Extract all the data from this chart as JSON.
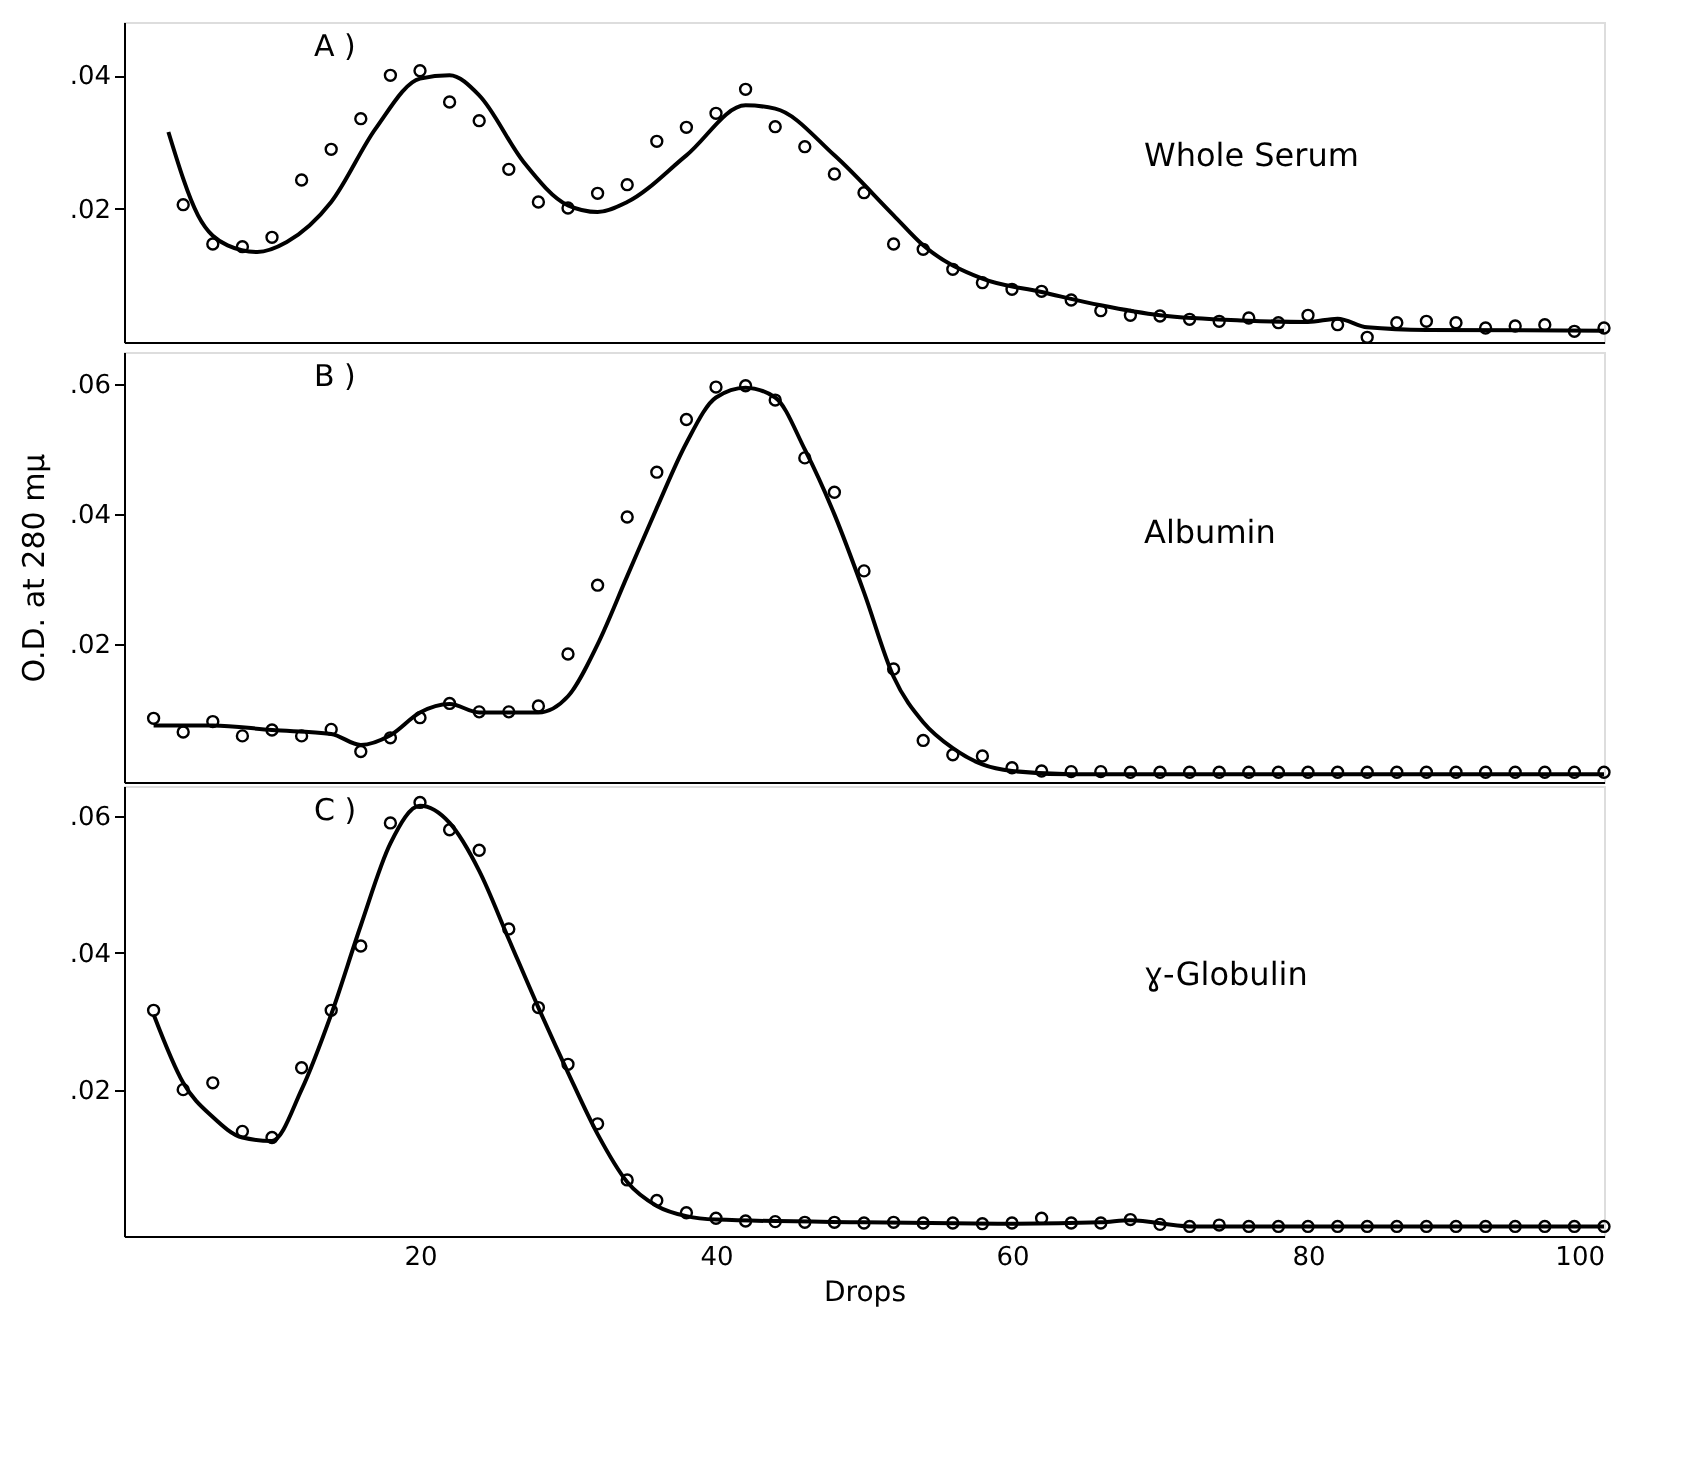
{
  "chart_data": [
    {
      "type": "scatter",
      "xlim": [
        0,
        100
      ],
      "xticks": [
        20,
        40,
        60,
        80,
        100
      ],
      "ylim": [
        0,
        0.048
      ],
      "yticks": [
        {
          "value": 0.02,
          "label": ".02"
        },
        {
          "value": 0.04,
          "label": ".04"
        }
      ],
      "tick_labels": "y",
      "annotations": [
        "A )",
        "Whole Serum"
      ],
      "series": [
        {
          "type": "scatter",
          "marker": "circle",
          "color": "#000000",
          "x": [
            4,
            6,
            8,
            10,
            12,
            14,
            16,
            18,
            20,
            22,
            24,
            26,
            28,
            30,
            32,
            34,
            36,
            38,
            40,
            42,
            44,
            46,
            48,
            50,
            52,
            54,
            56,
            58,
            60,
            62,
            64,
            66,
            68,
            70,
            72,
            74,
            76,
            78,
            80,
            82,
            84,
            86,
            88,
            90,
            92,
            94,
            96,
            98,
            100
          ],
          "values": [
            0.0206,
            0.0147,
            0.0143,
            0.0157,
            0.0243,
            0.0289,
            0.0335,
            0.04,
            0.0407,
            0.036,
            0.0332,
            0.0259,
            0.021,
            0.0201,
            0.0223,
            0.0236,
            0.0301,
            0.0322,
            0.0343,
            0.0379,
            0.0323,
            0.0293,
            0.0252,
            0.0224,
            0.0147,
            0.0139,
            0.0109,
            0.0089,
            0.0079,
            0.0076,
            0.0063,
            0.0047,
            0.004,
            0.0039,
            0.0034,
            0.0031,
            0.0036,
            0.0029,
            0.004,
            0.0026,
            0.0007,
            0.0029,
            0.0031,
            0.0029,
            0.0021,
            0.0024,
            0.0026,
            0.0016,
            0.0021
          ]
        },
        {
          "type": "line",
          "color": "#000000",
          "x": [
            3,
            5,
            7,
            9,
            11,
            14,
            17,
            20,
            22,
            24,
            27,
            30,
            32,
            34,
            38,
            42,
            44,
            48,
            52,
            54,
            58,
            62,
            66,
            70,
            76,
            80,
            82,
            84,
            88,
            100
          ],
          "values": [
            0.0315,
            0.019,
            0.0145,
            0.0135,
            0.015,
            0.021,
            0.032,
            0.0395,
            0.04,
            0.037,
            0.027,
            0.0205,
            0.0195,
            0.021,
            0.028,
            0.0355,
            0.035,
            0.028,
            0.019,
            0.0145,
            0.0095,
            0.0075,
            0.0055,
            0.004,
            0.0032,
            0.003,
            0.0035,
            0.0022,
            0.0018,
            0.0017
          ]
        }
      ]
    },
    {
      "type": "scatter",
      "xlim": [
        0,
        100
      ],
      "xticks": [
        20,
        40,
        60,
        80,
        100
      ],
      "ylim": [
        -0.0012,
        0.065
      ],
      "yticks": [
        {
          "value": 0.02,
          "label": ".02"
        },
        {
          "value": 0.04,
          "label": ".04"
        },
        {
          "value": 0.06,
          "label": ".06"
        }
      ],
      "tick_labels": "y",
      "ylabel": "O.D. at 280 mμ",
      "annotations": [
        "B )",
        "Albumin"
      ],
      "series": [
        {
          "type": "scatter",
          "color": "#000000",
          "x": [
            2,
            4,
            6,
            8,
            10,
            12,
            14,
            16,
            18,
            20,
            22,
            24,
            26,
            28,
            30,
            32,
            34,
            36,
            38,
            40,
            42,
            44,
            46,
            48,
            50,
            52,
            54,
            56,
            58,
            60,
            62,
            64,
            66,
            68,
            70,
            72,
            74,
            76,
            78,
            80,
            82,
            84,
            86,
            88,
            90,
            92,
            94,
            96,
            98,
            100
          ],
          "marker": "circle",
          "values": [
            0.0086,
            0.0065,
            0.0081,
            0.0059,
            0.0068,
            0.0059,
            0.0069,
            0.0035,
            0.0056,
            0.0087,
            0.0109,
            0.0096,
            0.0096,
            0.0105,
            0.0185,
            0.0291,
            0.0396,
            0.0465,
            0.0546,
            0.0596,
            0.0598,
            0.0576,
            0.0487,
            0.0434,
            0.0313,
            0.0162,
            0.0052,
            0.003,
            0.0028,
            0.001,
            0.0005,
            0.0004,
            0.0004,
            0.0003,
            0.0003,
            0.0003,
            0.0003,
            0.0003,
            0.0003,
            0.0003,
            0.0003,
            0.0003,
            0.0003,
            0.0003,
            0.0003,
            0.0003,
            0.0003,
            0.0003,
            0.0003,
            0.0003
          ]
        },
        {
          "type": "line",
          "color": "#000000",
          "x": [
            2,
            6,
            10,
            14,
            16,
            18,
            20,
            22,
            24,
            28,
            30,
            32,
            34,
            36,
            38,
            40,
            42,
            44,
            46,
            48,
            50,
            52,
            54,
            56,
            58,
            60,
            64,
            100
          ],
          "values": [
            0.0075,
            0.0075,
            0.0068,
            0.0062,
            0.0045,
            0.006,
            0.0095,
            0.0108,
            0.0095,
            0.0095,
            0.012,
            0.02,
            0.0305,
            0.041,
            0.051,
            0.058,
            0.0595,
            0.058,
            0.05,
            0.04,
            0.028,
            0.015,
            0.008,
            0.004,
            0.0015,
            0.0005,
            0.0,
            0.0
          ]
        }
      ]
    },
    {
      "type": "scatter",
      "xlim": [
        0,
        100
      ],
      "xticks": [
        20,
        40,
        60,
        80,
        100
      ],
      "ylim": [
        -0.0014,
        0.0644
      ],
      "yticks": [
        {
          "value": 0.02,
          "label": ".02"
        },
        {
          "value": 0.04,
          "label": ".04"
        },
        {
          "value": 0.06,
          "label": ".06"
        }
      ],
      "xlabel": "Drops",
      "annotations": [
        "C )",
        "ɣ-Globulin"
      ],
      "series": [
        {
          "type": "scatter",
          "color": "#000000",
          "x": [
            2,
            4,
            6,
            8,
            10,
            12,
            14,
            16,
            18,
            20,
            22,
            24,
            26,
            28,
            30,
            32,
            34,
            36,
            38,
            40,
            42,
            44,
            46,
            48,
            50,
            52,
            54,
            56,
            58,
            60,
            62,
            64,
            66,
            68,
            70,
            72,
            74,
            76,
            78,
            80,
            82,
            84,
            86,
            88,
            90,
            92,
            94,
            96,
            98,
            100
          ],
          "marker": "circle",
          "values": [
            0.0316,
            0.02,
            0.021,
            0.0139,
            0.013,
            0.0232,
            0.0316,
            0.041,
            0.059,
            0.062,
            0.058,
            0.055,
            0.0435,
            0.032,
            0.0237,
            0.015,
            0.0068,
            0.0038,
            0.002,
            0.0012,
            0.0008,
            0.0007,
            0.0006,
            0.0006,
            0.0005,
            0.0006,
            0.0005,
            0.0005,
            0.0004,
            0.0005,
            0.0012,
            0.0005,
            0.0005,
            0.001,
            0.0003,
            0.0,
            0.0002,
            0.0,
            0.0,
            0.0,
            0.0,
            0.0,
            0.0,
            0.0,
            0.0,
            0.0,
            0.0,
            0.0,
            0.0,
            0.0
          ]
        },
        {
          "type": "line",
          "color": "#000000",
          "x": [
            2,
            4,
            6,
            8,
            10,
            12,
            14,
            16,
            18,
            20,
            22,
            24,
            26,
            28,
            30,
            32,
            34,
            36,
            38,
            40,
            50,
            60,
            66,
            68,
            72,
            80,
            100
          ],
          "values": [
            0.031,
            0.021,
            0.016,
            0.013,
            0.0125,
            0.02,
            0.031,
            0.044,
            0.056,
            0.0615,
            0.059,
            0.052,
            0.042,
            0.032,
            0.0225,
            0.0135,
            0.0065,
            0.003,
            0.0015,
            0.001,
            0.0006,
            0.0004,
            0.0006,
            0.0009,
            0.0,
            0.0,
            0.0
          ]
        }
      ]
    }
  ]
}
